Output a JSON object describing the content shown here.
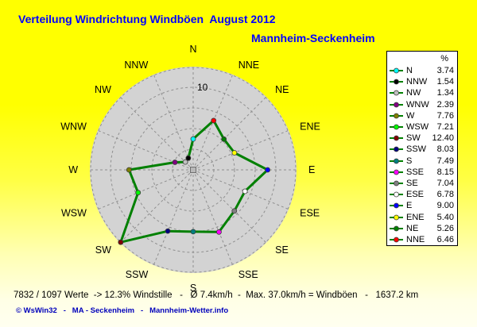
{
  "title": "Verteilung Windrichtung Windböen  August 2012",
  "subtitle": "Mannheim-Seckenheim",
  "legend": {
    "header": "%"
  },
  "footer": {
    "stats": "7832 / 1097 Werte  -> 12.3% Windstille   -   Ø 7.4km/h  -  Max. 37.0km/h = Windböen   -   1637.2 km",
    "credit": "© WsWin32   -   MA - Seckenheim   -   Mannheim-Wetter.info"
  },
  "colors": {
    "title_text": "#0000ff",
    "credit_text": "#0000bb",
    "background_top": "#ffff00",
    "background_bottom": "#fffff0"
  },
  "chart_data": {
    "type": "radar",
    "title": "Verteilung Windrichtung Windböen  August 2012",
    "subtitle": "Mannheim-Seckenheim",
    "unit": "%",
    "categories": [
      "N",
      "NNE",
      "NE",
      "ENE",
      "E",
      "ESE",
      "SE",
      "SSE",
      "S",
      "SSW",
      "SW",
      "WSW",
      "W",
      "WNW",
      "NW",
      "NNW"
    ],
    "values": [
      3.74,
      6.46,
      5.26,
      5.4,
      9.0,
      6.78,
      7.04,
      8.15,
      7.49,
      8.03,
      12.4,
      7.21,
      7.76,
      2.39,
      1.34,
      1.54
    ],
    "marker_colors": [
      "#00ffff",
      "#ff0000",
      "#008000",
      "#ffff00",
      "#0000ff",
      "#ffffff",
      "#808080",
      "#ff00ff",
      "#008080",
      "#000080",
      "#800000",
      "#00ff00",
      "#808000",
      "#800080",
      "#c0c0c0",
      "#000000"
    ],
    "legend_order": [
      "N",
      "NNW",
      "NW",
      "WNW",
      "W",
      "WSW",
      "SW",
      "SSW",
      "S",
      "SSE",
      "SE",
      "ESE",
      "E",
      "ENE",
      "NE",
      "NNE"
    ],
    "ring_values": [
      2.5,
      5,
      7.5,
      10,
      12.5
    ],
    "ring_label": "10",
    "rmax": 12.5,
    "line_color": "#008000",
    "grid_color": "#8f8f8f",
    "plot_bg": "#d3d3d3",
    "legend_position": "right",
    "grid": true
  }
}
